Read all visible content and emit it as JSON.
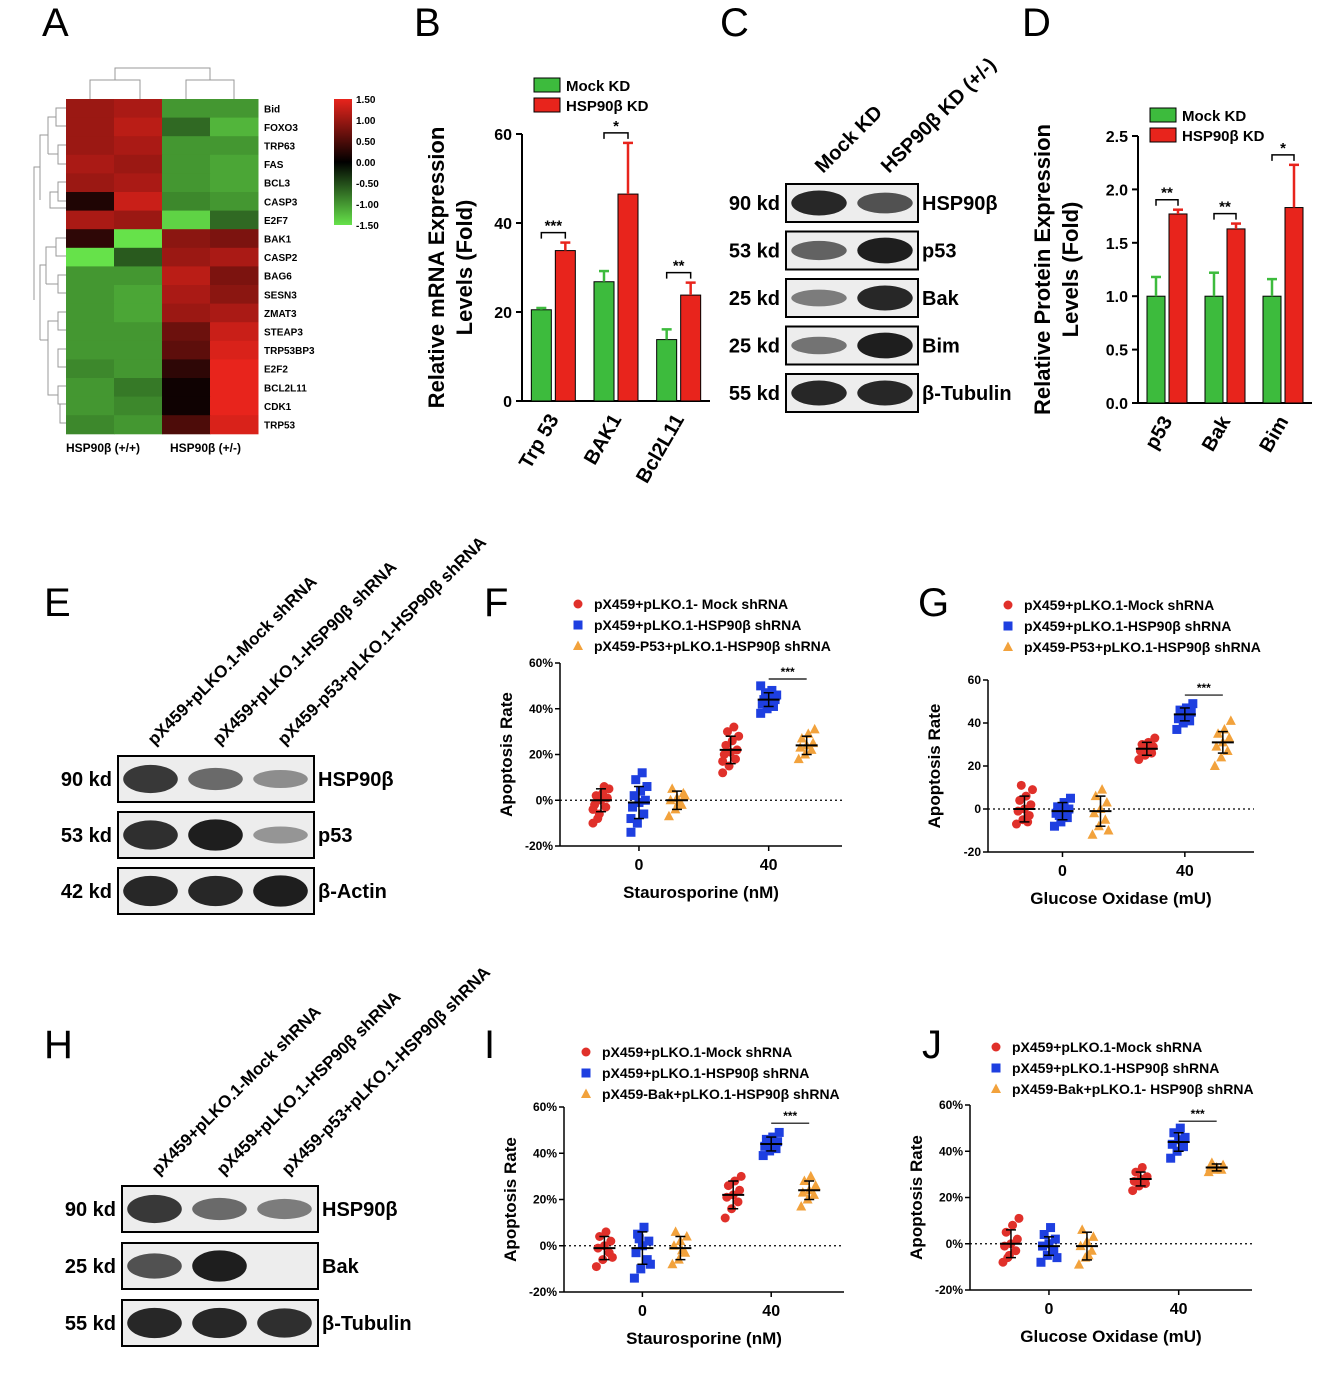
{
  "panels": [
    {
      "letter": "A"
    },
    {
      "letter": "B"
    },
    {
      "letter": "C"
    },
    {
      "letter": "D"
    },
    {
      "letter": "E"
    },
    {
      "letter": "F"
    },
    {
      "letter": "G"
    },
    {
      "letter": "H"
    },
    {
      "letter": "I"
    },
    {
      "letter": "J"
    }
  ],
  "heatmap": {
    "genes": [
      "Bid",
      "FOXO3",
      "TRP63",
      "FAS",
      "BCL3",
      "CASP3",
      "E2F7",
      "BAK1",
      "CASP2",
      "BAG6",
      "SESN3",
      "ZMAT3",
      "STEAP3",
      "TRP53BP3",
      "E2F2",
      "BCL2L11",
      "CDK1",
      "TRP53"
    ],
    "values": [
      [
        1.0,
        1.1,
        -1.0,
        -1.0
      ],
      [
        1.0,
        1.2,
        -0.7,
        -1.2
      ],
      [
        1.0,
        1.1,
        -1.0,
        -1.0
      ],
      [
        1.1,
        1.0,
        -1.0,
        -1.1
      ],
      [
        1.0,
        1.1,
        -1.0,
        -1.1
      ],
      [
        0.2,
        1.3,
        -0.9,
        -1.0
      ],
      [
        1.1,
        1.0,
        -1.4,
        -0.7
      ],
      [
        0.3,
        -1.6,
        0.9,
        0.8
      ],
      [
        -1.5,
        -0.6,
        1.0,
        1.1
      ],
      [
        -1.0,
        -1.0,
        1.2,
        0.8
      ],
      [
        -1.0,
        -1.1,
        1.1,
        0.9
      ],
      [
        -1.0,
        -1.1,
        1.0,
        1.1
      ],
      [
        -1.0,
        -1.0,
        0.7,
        1.3
      ],
      [
        -1.0,
        -1.0,
        0.6,
        1.4
      ],
      [
        -0.9,
        -1.0,
        0.3,
        1.6
      ],
      [
        -1.0,
        -0.8,
        0.1,
        1.7
      ],
      [
        -1.0,
        -0.9,
        0.1,
        1.8
      ],
      [
        -0.9,
        -1.0,
        0.5,
        1.4
      ]
    ],
    "colorbar_ticks": [
      "1.50",
      "1.00",
      "0.50",
      "0.00",
      "-0.50",
      "-1.00",
      "-1.50"
    ],
    "colors": {
      "high": "#e8241c",
      "mid": "#000000",
      "low": "#66e24a"
    },
    "group_labels": [
      "HSP90β (+/+)",
      "HSP90β (+/-)"
    ]
  },
  "chart_data": [
    {
      "panel": "B",
      "type": "bar",
      "categories": [
        "Trp 53",
        "BAK1",
        "Bcl2L11"
      ],
      "series": [
        {
          "name": "Mock KD",
          "values": [
            20.5,
            26.8,
            13.8
          ],
          "errors": [
            0.4,
            2.4,
            2.3
          ],
          "color": "#3dbb3d"
        },
        {
          "name": "HSP90β KD",
          "values": [
            33.8,
            46.5,
            23.8
          ],
          "errors": [
            1.8,
            11.5,
            2.8
          ],
          "color": "#e8241c"
        }
      ],
      "ylabel": "Relative mRNA Expression Levels (Fold)",
      "ylim": [
        0,
        60
      ],
      "yticks": [
        "0",
        "20",
        "40",
        "60"
      ],
      "significance": [
        "***",
        "*",
        "**"
      ],
      "legend": "top"
    },
    {
      "panel": "D",
      "type": "bar",
      "categories": [
        "p53",
        "Bak",
        "Bim"
      ],
      "series": [
        {
          "name": "Mock KD",
          "values": [
            1.0,
            1.0,
            1.0
          ],
          "errors": [
            0.18,
            0.22,
            0.16
          ],
          "color": "#3dbb3d"
        },
        {
          "name": "HSP90β KD",
          "values": [
            1.77,
            1.63,
            1.83
          ],
          "errors": [
            0.04,
            0.05,
            0.4
          ],
          "color": "#e8241c"
        }
      ],
      "ylabel": "Relative Protein Expression Levels (Fold)",
      "ylim": [
        0,
        2.5
      ],
      "yticks": [
        "0.0",
        "0.5",
        "1.0",
        "1.5",
        "2.0",
        "2.5"
      ],
      "significance": [
        "**",
        "**",
        "*"
      ],
      "legend": "top-left"
    },
    {
      "panel": "F",
      "type": "scatter",
      "xlabel": "Staurosporine (nM)",
      "ylabel": "Apoptosis Rate",
      "ylim": [
        -20,
        60
      ],
      "yticks": [
        "-20%",
        "0%",
        "20%",
        "40%",
        "60%"
      ],
      "xticks": [
        "0",
        "40"
      ],
      "series": [
        {
          "name": "pX459+pLKO.1- Mock shRNA",
          "marker": "circle",
          "color": "#e0302a",
          "groups": [
            {
              "x": "0",
              "mean": 0,
              "sd": 5,
              "points": [
                -10,
                -6,
                -3,
                -2,
                0,
                1,
                2,
                3,
                5,
                -8,
                6,
                -4
              ]
            },
            {
              "x": "40",
              "mean": 22,
              "sd": 6,
              "points": [
                12,
                15,
                18,
                20,
                21,
                22,
                24,
                26,
                28,
                30,
                32,
                17
              ]
            }
          ]
        },
        {
          "name": "pX459+pLKO.1-HSP90β shRNA",
          "marker": "square",
          "color": "#1e3fe0",
          "groups": [
            {
              "x": "0",
              "mean": -1,
              "sd": 7,
              "points": [
                -14,
                -10,
                -6,
                -3,
                -1,
                0,
                2,
                4,
                6,
                9,
                12,
                -8
              ]
            },
            {
              "x": "40",
              "mean": 44,
              "sd": 3,
              "points": [
                38,
                40,
                41,
                42,
                43,
                44,
                44,
                45,
                46,
                47,
                48,
                50
              ]
            }
          ]
        },
        {
          "name": "pX459-P53+pLKO.1-HSP90β shRNA",
          "marker": "triangle",
          "color": "#f2a23c",
          "groups": [
            {
              "x": "0",
              "mean": 0,
              "sd": 4,
              "points": [
                -7,
                -4,
                -2,
                0,
                1,
                3,
                5,
                -1,
                2
              ]
            },
            {
              "x": "40",
              "mean": 24,
              "sd": 4,
              "points": [
                18,
                20,
                22,
                23,
                24,
                25,
                27,
                29,
                31
              ]
            }
          ]
        }
      ],
      "significance": "***"
    },
    {
      "panel": "G",
      "type": "scatter",
      "xlabel": "Glucose Oxidase (mU)",
      "ylabel": "Apoptosis Rate",
      "ylim": [
        -20,
        60
      ],
      "yticks": [
        "-20",
        "0",
        "20",
        "40",
        "60"
      ],
      "xticks": [
        "0",
        "40"
      ],
      "series": [
        {
          "name": "pX459+pLKO.1-Mock shRNA",
          "marker": "circle",
          "color": "#e0302a",
          "groups": [
            {
              "x": "0",
              "mean": 0,
              "sd": 6,
              "points": [
                -7,
                -5,
                -3,
                -1,
                0,
                2,
                4,
                6,
                9,
                11,
                -6
              ]
            },
            {
              "x": "40",
              "mean": 28,
              "sd": 3,
              "points": [
                23,
                25,
                26,
                27,
                28,
                29,
                30,
                31,
                33
              ]
            }
          ]
        },
        {
          "name": "pX459+pLKO.1-HSP90β shRNA",
          "marker": "square",
          "color": "#1e3fe0",
          "groups": [
            {
              "x": "0",
              "mean": -1,
              "sd": 4,
              "points": [
                -8,
                -6,
                -4,
                -2,
                -1,
                0,
                1,
                3,
                5,
                -3
              ]
            },
            {
              "x": "40",
              "mean": 44,
              "sd": 3,
              "points": [
                37,
                40,
                41,
                42,
                44,
                45,
                46,
                47,
                49
              ]
            }
          ]
        },
        {
          "name": "pX459-P53+pLKO.1-HSP90β shRNA",
          "marker": "triangle",
          "color": "#f2a23c",
          "groups": [
            {
              "x": "0",
              "mean": -1,
              "sd": 7,
              "points": [
                -12,
                -8,
                -5,
                -2,
                0,
                3,
                6,
                9,
                -10
              ]
            },
            {
              "x": "40",
              "mean": 31,
              "sd": 5,
              "points": [
                20,
                24,
                27,
                29,
                31,
                33,
                35,
                37,
                41
              ]
            }
          ]
        }
      ],
      "significance": "***"
    },
    {
      "panel": "I",
      "type": "scatter",
      "xlabel": "Staurosporine (nM)",
      "ylabel": "Apoptosis Rate",
      "ylim": [
        -20,
        60
      ],
      "yticks": [
        "-20%",
        "0%",
        "20%",
        "40%",
        "60%"
      ],
      "xticks": [
        "0",
        "40"
      ],
      "series": [
        {
          "name": "pX459+pLKO.1-Mock shRNA",
          "marker": "circle",
          "color": "#e0302a",
          "groups": [
            {
              "x": "0",
              "mean": -1,
              "sd": 5,
              "points": [
                -9,
                -6,
                -3,
                -1,
                0,
                2,
                4,
                6,
                -5
              ]
            },
            {
              "x": "40",
              "mean": 22,
              "sd": 6,
              "points": [
                12,
                16,
                19,
                21,
                22,
                24,
                26,
                28,
                30
              ]
            }
          ]
        },
        {
          "name": "pX459+pLKO.1-HSP90β shRNA",
          "marker": "square",
          "color": "#1e3fe0",
          "groups": [
            {
              "x": "0",
              "mean": -1,
              "sd": 7,
              "points": [
                -14,
                -10,
                -6,
                -3,
                0,
                2,
                5,
                8,
                -8,
                3
              ]
            },
            {
              "x": "40",
              "mean": 44,
              "sd": 3,
              "points": [
                39,
                41,
                42,
                43,
                44,
                45,
                46,
                47,
                49
              ]
            }
          ]
        },
        {
          "name": "pX459-Bak+pLKO.1-HSP90β shRNA",
          "marker": "triangle",
          "color": "#f2a23c",
          "groups": [
            {
              "x": "0",
              "mean": -1,
              "sd": 5,
              "points": [
                -8,
                -6,
                -3,
                0,
                2,
                4,
                6,
                -2
              ]
            },
            {
              "x": "40",
              "mean": 24,
              "sd": 4,
              "points": [
                17,
                20,
                22,
                23,
                24,
                26,
                28,
                30
              ]
            }
          ]
        }
      ],
      "significance": "***"
    },
    {
      "panel": "J",
      "type": "scatter",
      "xlabel": "Glucose Oxidase (mU)",
      "ylabel": "Apoptosis Rate",
      "ylim": [
        -20,
        60
      ],
      "yticks": [
        "-20%",
        "0%",
        "20%",
        "40%",
        "60%"
      ],
      "xticks": [
        "0",
        "40"
      ],
      "series": [
        {
          "name": "pX459+pLKO.1-Mock shRNA",
          "marker": "circle",
          "color": "#e0302a",
          "groups": [
            {
              "x": "0",
              "mean": 0,
              "sd": 6,
              "points": [
                -8,
                -5,
                -3,
                -1,
                0,
                2,
                5,
                8,
                11,
                -6
              ]
            },
            {
              "x": "40",
              "mean": 28,
              "sd": 3,
              "points": [
                23,
                25,
                26,
                27,
                28,
                29,
                31,
                33
              ]
            }
          ]
        },
        {
          "name": "pX459+pLKO.1-HSP90β shRNA",
          "marker": "square",
          "color": "#1e3fe0",
          "groups": [
            {
              "x": "0",
              "mean": -1,
              "sd": 4,
              "points": [
                -8,
                -5,
                -3,
                -1,
                0,
                2,
                4,
                7,
                -6
              ]
            },
            {
              "x": "40",
              "mean": 44,
              "sd": 4,
              "points": [
                37,
                40,
                42,
                43,
                45,
                46,
                48,
                50
              ]
            }
          ]
        },
        {
          "name": "pX459-Bak+pLKO.1- HSP90β shRNA",
          "marker": "triangle",
          "color": "#f2a23c",
          "groups": [
            {
              "x": "0",
              "mean": -1,
              "sd": 6,
              "points": [
                -9,
                -6,
                -3,
                -1,
                1,
                3,
                6,
                -5
              ]
            },
            {
              "x": "40",
              "mean": 33,
              "sd": 1.5,
              "points": [
                31,
                32,
                32,
                33,
                33,
                34,
                35
              ]
            }
          ]
        }
      ],
      "significance": "***"
    }
  ],
  "blots": [
    {
      "panel": "C",
      "lanes": [
        "Mock KD",
        "HSP90β KD (+/-)"
      ],
      "rows": [
        {
          "size": "90 kd",
          "protein": "HSP90β",
          "intensity": [
            0.95,
            0.7
          ]
        },
        {
          "size": "53 kd",
          "protein": "p53",
          "intensity": [
            0.6,
            1.0
          ]
        },
        {
          "size": "25 kd",
          "protein": "Bak",
          "intensity": [
            0.45,
            0.95
          ]
        },
        {
          "size": "25 kd",
          "protein": "Bim",
          "intensity": [
            0.5,
            1.0
          ]
        },
        {
          "size": "55 kd",
          "protein": "β-Tubulin",
          "intensity": [
            0.95,
            0.95
          ]
        }
      ]
    },
    {
      "panel": "E",
      "lanes": [
        "pX459+pLKO.1-Mock shRNA",
        "pX459+pLKO.1-HSP90β shRNA",
        "pX459-p53+pLKO.1-HSP90β shRNA"
      ],
      "rows": [
        {
          "size": "90 kd",
          "protein": "HSP90β",
          "intensity": [
            0.85,
            0.55,
            0.35
          ]
        },
        {
          "size": "53 kd",
          "protein": "p53",
          "intensity": [
            0.9,
            1.0,
            0.3
          ]
        },
        {
          "size": "42 kd",
          "protein": "β-Actin",
          "intensity": [
            0.95,
            0.95,
            1.0
          ]
        }
      ]
    },
    {
      "panel": "H",
      "lanes": [
        "pX459+pLKO.1-Mock shRNA",
        "pX459+pLKO.1-HSP90β shRNA",
        "pX459-p53+pLKO.1-HSP90β shRNA"
      ],
      "rows": [
        {
          "size": "90 kd",
          "protein": "HSP90β",
          "intensity": [
            0.85,
            0.55,
            0.45
          ]
        },
        {
          "size": "25 kd",
          "protein": "Bak",
          "intensity": [
            0.7,
            1.0,
            0.0
          ]
        },
        {
          "size": "55 kd",
          "protein": "β-Tubulin",
          "intensity": [
            0.95,
            0.95,
            0.9
          ]
        }
      ]
    }
  ]
}
